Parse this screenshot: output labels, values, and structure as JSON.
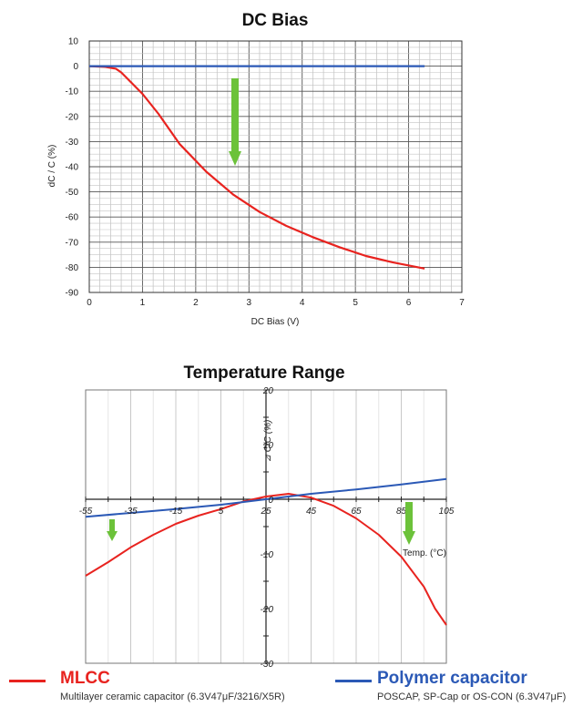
{
  "colors": {
    "mlcc": "#e8231f",
    "polymer": "#2b59b6",
    "arrow": "#6cc23a",
    "grid": "#9a9a9a"
  },
  "chart_data": [
    {
      "type": "line",
      "title": "DC Bias",
      "xlabel": "DC Bias (V)",
      "ylabel": "dC / C (%)",
      "xlim": [
        0,
        7
      ],
      "ylim": [
        -90,
        10
      ],
      "xticks": [
        0,
        1,
        2,
        3,
        4,
        5,
        6,
        7
      ],
      "yticks": [
        10,
        0,
        -10,
        -20,
        -30,
        -40,
        -50,
        -60,
        -70,
        -80,
        -90
      ],
      "grid": true,
      "series": [
        {
          "key": "mlcc",
          "x": [
            0,
            0.3,
            0.5,
            0.6,
            1.0,
            1.3,
            1.7,
            2.2,
            2.7,
            3.2,
            3.7,
            4.2,
            4.7,
            5.2,
            5.7,
            6.3
          ],
          "y": [
            0,
            -0.3,
            -1,
            -2.5,
            -11,
            -19,
            -31,
            -42,
            -51,
            -58,
            -63.5,
            -68,
            -72,
            -75.5,
            -78,
            -80.5
          ]
        },
        {
          "key": "polymer",
          "x": [
            0,
            6.3
          ],
          "y": [
            0,
            0
          ]
        }
      ]
    },
    {
      "type": "line",
      "title": "Temperature Range",
      "xlabel": "Temp. (°C)",
      "ylabel": "⊿ C/C (%)",
      "xlim": [
        -55,
        105
      ],
      "ylim": [
        -30,
        20
      ],
      "xticks": [
        "-55",
        "-35",
        "-15",
        "5",
        "25",
        "45",
        "65",
        "85",
        "105"
      ],
      "yticks": [
        "20",
        "10",
        "0",
        "-10",
        "-20",
        "-30"
      ],
      "grid": true,
      "series": [
        {
          "key": "mlcc",
          "x": [
            -55,
            -45,
            -35,
            -25,
            -15,
            -5,
            5,
            15,
            25,
            35,
            45,
            55,
            65,
            75,
            85,
            95,
            100,
            105
          ],
          "y": [
            -14,
            -11.5,
            -8.8,
            -6.5,
            -4.5,
            -3,
            -1.8,
            -0.4,
            0.5,
            1,
            0.3,
            -1.2,
            -3.5,
            -6.5,
            -10.5,
            -16,
            -20,
            -23
          ]
        },
        {
          "key": "polymer",
          "x": [
            -55,
            -35,
            -15,
            5,
            25,
            45,
            65,
            85,
            105
          ],
          "y": [
            -3.2,
            -2.5,
            -1.8,
            -1,
            0,
            1,
            1.8,
            2.7,
            3.7
          ]
        }
      ]
    }
  ],
  "legend": [
    {
      "name": "MLCC",
      "desc": "Multilayer ceramic capacitor (6.3V47μF/3216/X5R)"
    },
    {
      "name": "Polymer capacitor",
      "desc": "POSCAP, SP-Cap or OS-CON (6.3V47μF)"
    }
  ]
}
